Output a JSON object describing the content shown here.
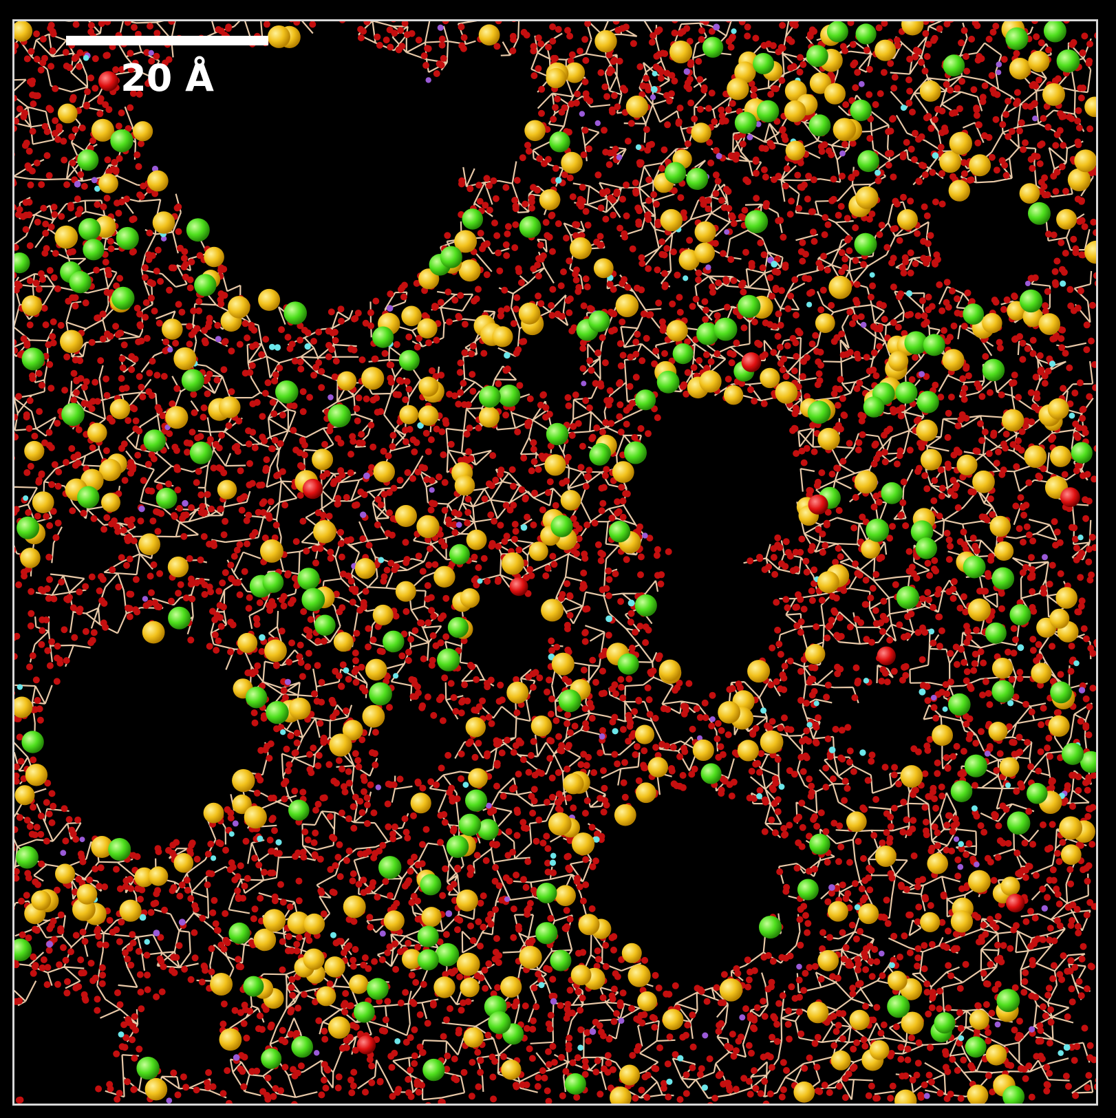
{
  "scale_bar": {
    "label": "20 Å"
  },
  "colors": {
    "background": "#000000",
    "border": "#d8d8d8",
    "oxygen_network": "#c40f0f",
    "bond": "#e8c9a8",
    "yellow_atom": "#f2c21c",
    "green_atom": "#4fe01e",
    "cyan_atom": "#6be6ea",
    "purple_atom": "#9a5ad8",
    "red_atom": "#ff1010"
  }
}
